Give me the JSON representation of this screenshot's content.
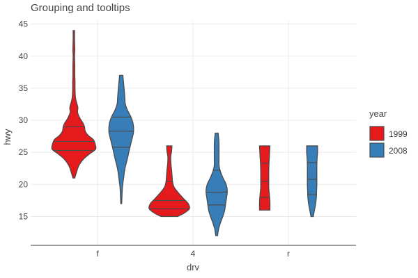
{
  "chart_data": {
    "type": "violin",
    "title": "Grouping and tooltips",
    "xlabel": "drv",
    "ylabel": "hwy",
    "categories": [
      "f",
      "4",
      "r"
    ],
    "y_ticks": [
      15,
      20,
      25,
      30,
      35,
      40,
      45
    ],
    "ylim": [
      10.5,
      45.5
    ],
    "grid": true,
    "legend": {
      "title": "year",
      "position": "right",
      "entries": [
        {
          "label": "1999",
          "color": "#e41a1c"
        },
        {
          "label": "2008",
          "color": "#377eb8"
        }
      ]
    },
    "series": [
      {
        "name": "1999",
        "color": "#e41a1c",
        "groups": [
          {
            "category": "f",
            "profile": [
              [
                21,
                0.04
              ],
              [
                22,
                0.12
              ],
              [
                23,
                0.22
              ],
              [
                24,
                0.42
              ],
              [
                24.8,
                0.68
              ],
              [
                25.5,
                0.92
              ],
              [
                26.3,
                0.9
              ],
              [
                27,
                0.82
              ],
              [
                27.6,
                0.62
              ],
              [
                28.3,
                0.48
              ],
              [
                29,
                0.45
              ],
              [
                29.6,
                0.38
              ],
              [
                30.3,
                0.26
              ],
              [
                31.2,
                0.16
              ],
              [
                32,
                0.17
              ],
              [
                32.7,
                0.12
              ],
              [
                33.5,
                0.07
              ],
              [
                34.8,
                0.05
              ],
              [
                36,
                0.05
              ],
              [
                37,
                0.04
              ],
              [
                38.5,
                0.04
              ],
              [
                40,
                0.03
              ],
              [
                41,
                0.04
              ],
              [
                42.5,
                0.03
              ],
              [
                44,
                0.03
              ]
            ],
            "quartiles": [
              25.3,
              26.7,
              29.0
            ]
          },
          {
            "category": "4",
            "profile": [
              [
                15,
                0.35
              ],
              [
                15.5,
                0.62
              ],
              [
                16.2,
                0.85
              ],
              [
                17,
                0.8
              ],
              [
                17.8,
                0.6
              ],
              [
                18.7,
                0.38
              ],
              [
                19.6,
                0.2
              ],
              [
                20.4,
                0.14
              ],
              [
                21.2,
                0.12
              ],
              [
                22.2,
                0.1
              ],
              [
                23.2,
                0.07
              ],
              [
                24.3,
                0.06
              ],
              [
                25.2,
                0.1
              ],
              [
                26,
                0.11
              ]
            ],
            "quartiles": [
              16.2,
              17.5,
              20.5
            ]
          },
          {
            "category": "r",
            "profile": [
              [
                16,
                0.22
              ],
              [
                17.3,
                0.22
              ],
              [
                18.3,
                0.2
              ],
              [
                19.5,
                0.17
              ],
              [
                20.8,
                0.17
              ],
              [
                22,
                0.17
              ],
              [
                23.2,
                0.18
              ],
              [
                24.5,
                0.2
              ],
              [
                26,
                0.22
              ]
            ],
            "quartiles": [
              18.0,
              20.5,
              23.3
            ]
          }
        ]
      },
      {
        "name": "2008",
        "color": "#377eb8",
        "groups": [
          {
            "category": "f",
            "profile": [
              [
                17,
                0.02
              ],
              [
                18,
                0.03
              ],
              [
                19.5,
                0.05
              ],
              [
                21,
                0.1
              ],
              [
                22.5,
                0.16
              ],
              [
                24,
                0.26
              ],
              [
                25.5,
                0.35
              ],
              [
                27,
                0.45
              ],
              [
                28.2,
                0.52
              ],
              [
                29.5,
                0.5
              ],
              [
                30.6,
                0.4
              ],
              [
                31.6,
                0.26
              ],
              [
                32.6,
                0.17
              ],
              [
                33.6,
                0.15
              ],
              [
                34.6,
                0.13
              ],
              [
                35.8,
                0.1
              ],
              [
                37,
                0.07
              ]
            ],
            "quartiles": [
              25.8,
              28.3,
              30.5
            ]
          },
          {
            "category": "4",
            "profile": [
              [
                12,
                0.04
              ],
              [
                13,
                0.08
              ],
              [
                14,
                0.16
              ],
              [
                15,
                0.26
              ],
              [
                16,
                0.34
              ],
              [
                17,
                0.38
              ],
              [
                18,
                0.42
              ],
              [
                19,
                0.45
              ],
              [
                20,
                0.4
              ],
              [
                21,
                0.27
              ],
              [
                22,
                0.16
              ],
              [
                23,
                0.1
              ],
              [
                24,
                0.1
              ],
              [
                25,
                0.1
              ],
              [
                26,
                0.1
              ],
              [
                27,
                0.09
              ],
              [
                28,
                0.06
              ]
            ],
            "quartiles": [
              16.8,
              18.8,
              22.2
            ]
          },
          {
            "category": "r",
            "profile": [
              [
                15,
                0.05
              ],
              [
                16,
                0.1
              ],
              [
                17,
                0.15
              ],
              [
                18,
                0.18
              ],
              [
                19,
                0.19
              ],
              [
                20,
                0.2
              ],
              [
                21,
                0.2
              ],
              [
                22,
                0.2
              ],
              [
                23,
                0.2
              ],
              [
                24,
                0.21
              ],
              [
                25,
                0.23
              ],
              [
                26,
                0.23
              ]
            ],
            "quartiles": [
              18.4,
              20.8,
              23.4
            ]
          }
        ]
      }
    ]
  }
}
